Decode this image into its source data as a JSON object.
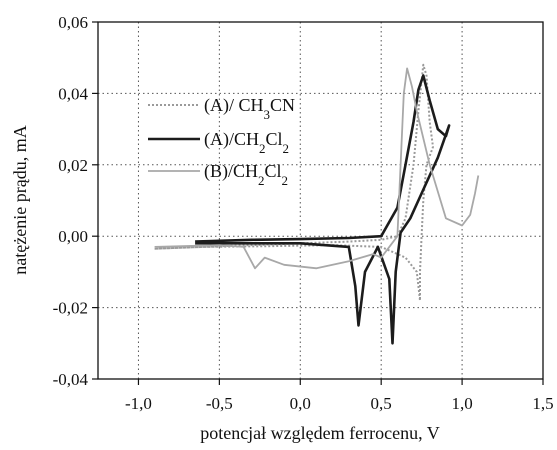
{
  "chart_data": {
    "type": "line",
    "xlabel": "potencjał względem ferrocenu, V",
    "ylabel": "natężenie prądu, mA",
    "xlim": [
      -1.25,
      1.5
    ],
    "ylim": [
      -0.04,
      0.06
    ],
    "grid": true,
    "legend_position": "top-left",
    "x_ticks": [
      -1.0,
      -0.5,
      0.0,
      0.5,
      1.0,
      1.5
    ],
    "x_tick_labels": [
      "-1,0",
      "-0,5",
      "0,0",
      "0,5",
      "1,0",
      "1,5"
    ],
    "y_ticks": [
      0.06,
      0.04,
      0.02,
      0.0,
      -0.02,
      -0.04
    ],
    "y_tick_labels": [
      "0,06",
      "0,04",
      "0,02",
      "0,00",
      "-0,02",
      "-0,04"
    ],
    "series": [
      {
        "name": "(A)/ CH3CN",
        "legend_label": {
          "pre": "(A)/ CH",
          "sub1": "3",
          "mid": "CN",
          "sub2": ""
        },
        "color": "#9a9a9a",
        "style": "dotted",
        "points": [
          [
            -0.9,
            -0.0035
          ],
          [
            -0.6,
            -0.003
          ],
          [
            -0.3,
            -0.0025
          ],
          [
            0.0,
            -0.002
          ],
          [
            0.3,
            -0.0015
          ],
          [
            0.5,
            -0.001
          ],
          [
            0.6,
            0.0
          ],
          [
            0.65,
            0.005
          ],
          [
            0.7,
            0.02
          ],
          [
            0.73,
            0.035
          ],
          [
            0.76,
            0.048
          ],
          [
            0.78,
            0.045
          ],
          [
            0.8,
            0.032
          ],
          [
            0.82,
            0.025
          ],
          [
            0.78,
            0.02
          ],
          [
            0.76,
            0.01
          ],
          [
            0.75,
            0.0
          ],
          [
            0.74,
            -0.01
          ],
          [
            0.74,
            -0.018
          ],
          [
            0.72,
            -0.01
          ],
          [
            0.65,
            -0.006
          ],
          [
            0.5,
            -0.003
          ],
          [
            0.2,
            -0.0025
          ],
          [
            -0.2,
            -0.0028
          ],
          [
            -0.6,
            -0.003
          ],
          [
            -0.9,
            -0.0035
          ]
        ]
      },
      {
        "name": "(A)/CH2Cl2",
        "legend_label": {
          "pre": "(A)/CH",
          "sub1": "2",
          "mid": "Cl",
          "sub2": "2"
        },
        "color": "#1c1c1c",
        "style": "solid",
        "points": [
          [
            -0.65,
            -0.0015
          ],
          [
            -0.3,
            -0.001
          ],
          [
            0.0,
            -0.0008
          ],
          [
            0.3,
            -0.0005
          ],
          [
            0.5,
            0.0
          ],
          [
            0.6,
            0.008
          ],
          [
            0.65,
            0.02
          ],
          [
            0.7,
            0.032
          ],
          [
            0.73,
            0.041
          ],
          [
            0.76,
            0.045
          ],
          [
            0.8,
            0.038
          ],
          [
            0.85,
            0.03
          ],
          [
            0.9,
            0.028
          ],
          [
            0.92,
            0.031
          ],
          [
            0.85,
            0.022
          ],
          [
            0.75,
            0.012
          ],
          [
            0.68,
            0.005
          ],
          [
            0.62,
            0.001
          ],
          [
            0.59,
            -0.01
          ],
          [
            0.57,
            -0.03
          ],
          [
            0.55,
            -0.012
          ],
          [
            0.48,
            -0.003
          ],
          [
            0.4,
            -0.01
          ],
          [
            0.36,
            -0.025
          ],
          [
            0.34,
            -0.014
          ],
          [
            0.3,
            -0.003
          ],
          [
            0.0,
            -0.002
          ],
          [
            -0.65,
            -0.002
          ]
        ]
      },
      {
        "name": "(B)/CH2Cl2",
        "legend_label": {
          "pre": "(B)/CH",
          "sub1": "2",
          "mid": "Cl",
          "sub2": "2"
        },
        "color": "#a8a8a8",
        "style": "solid",
        "points": [
          [
            -0.9,
            -0.003
          ],
          [
            -0.5,
            -0.0025
          ],
          [
            -0.35,
            -0.003
          ],
          [
            -0.28,
            -0.009
          ],
          [
            -0.22,
            -0.006
          ],
          [
            -0.1,
            -0.008
          ],
          [
            0.1,
            -0.009
          ],
          [
            0.3,
            -0.007
          ],
          [
            0.45,
            -0.005
          ],
          [
            0.5,
            -0.006
          ],
          [
            0.55,
            -0.003
          ],
          [
            0.6,
            0.0
          ],
          [
            0.62,
            0.02
          ],
          [
            0.64,
            0.04
          ],
          [
            0.66,
            0.047
          ],
          [
            0.69,
            0.042
          ],
          [
            0.72,
            0.035
          ],
          [
            0.8,
            0.02
          ],
          [
            0.9,
            0.005
          ],
          [
            1.0,
            0.003
          ],
          [
            1.05,
            0.006
          ],
          [
            1.08,
            0.012
          ],
          [
            1.1,
            0.017
          ]
        ]
      }
    ]
  }
}
